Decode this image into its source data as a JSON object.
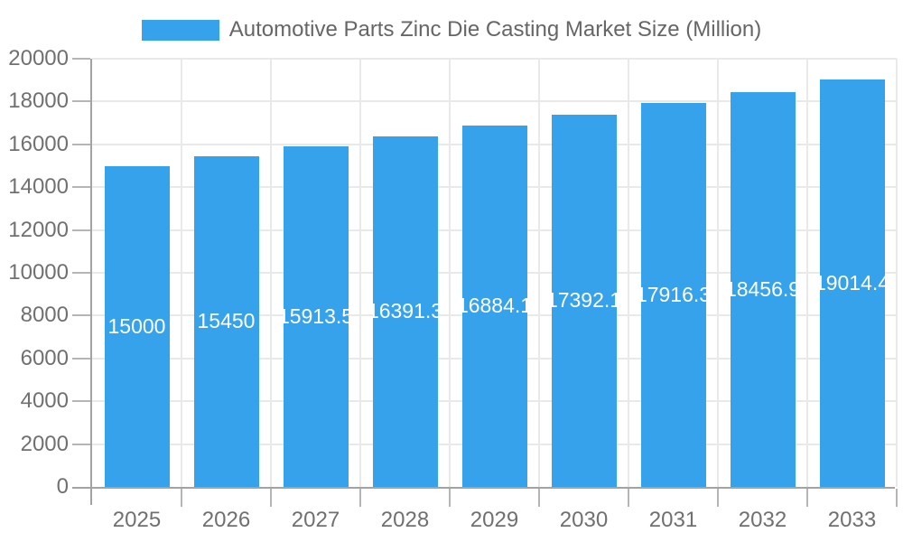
{
  "chart_data": {
    "type": "bar",
    "title": "Automotive Parts Zinc Die Casting Market Size (Million)",
    "categories": [
      "2025",
      "2026",
      "2027",
      "2028",
      "2029",
      "2030",
      "2031",
      "2032",
      "2033"
    ],
    "values": [
      15000,
      15450,
      15913.5,
      16391.3,
      16884.1,
      17392.1,
      17916.3,
      18456.9,
      19014.4
    ],
    "value_labels": [
      "15000",
      "15450",
      "15913.5",
      "16391.3",
      "16884.1",
      "17392.1",
      "17916.3",
      "18456.9",
      "19014.4"
    ],
    "xlabel": "",
    "ylabel": "",
    "ylim": [
      0,
      20000
    ],
    "ytick_step": 2000,
    "ytick_labels": [
      "0",
      "2000",
      "4000",
      "6000",
      "8000",
      "10000",
      "12000",
      "14000",
      "16000",
      "18000",
      "20000"
    ],
    "grid": true,
    "legend_position": "top",
    "colors": {
      "bar": "#36a2eb",
      "text": "#666666",
      "tick_text": "#707070",
      "bar_label_text": "#ffffff",
      "gridline": "#e9e9e9",
      "axis_line": "#a3a3a3",
      "tick_mark": "#b5b5b5",
      "background": "#ffffff"
    }
  }
}
